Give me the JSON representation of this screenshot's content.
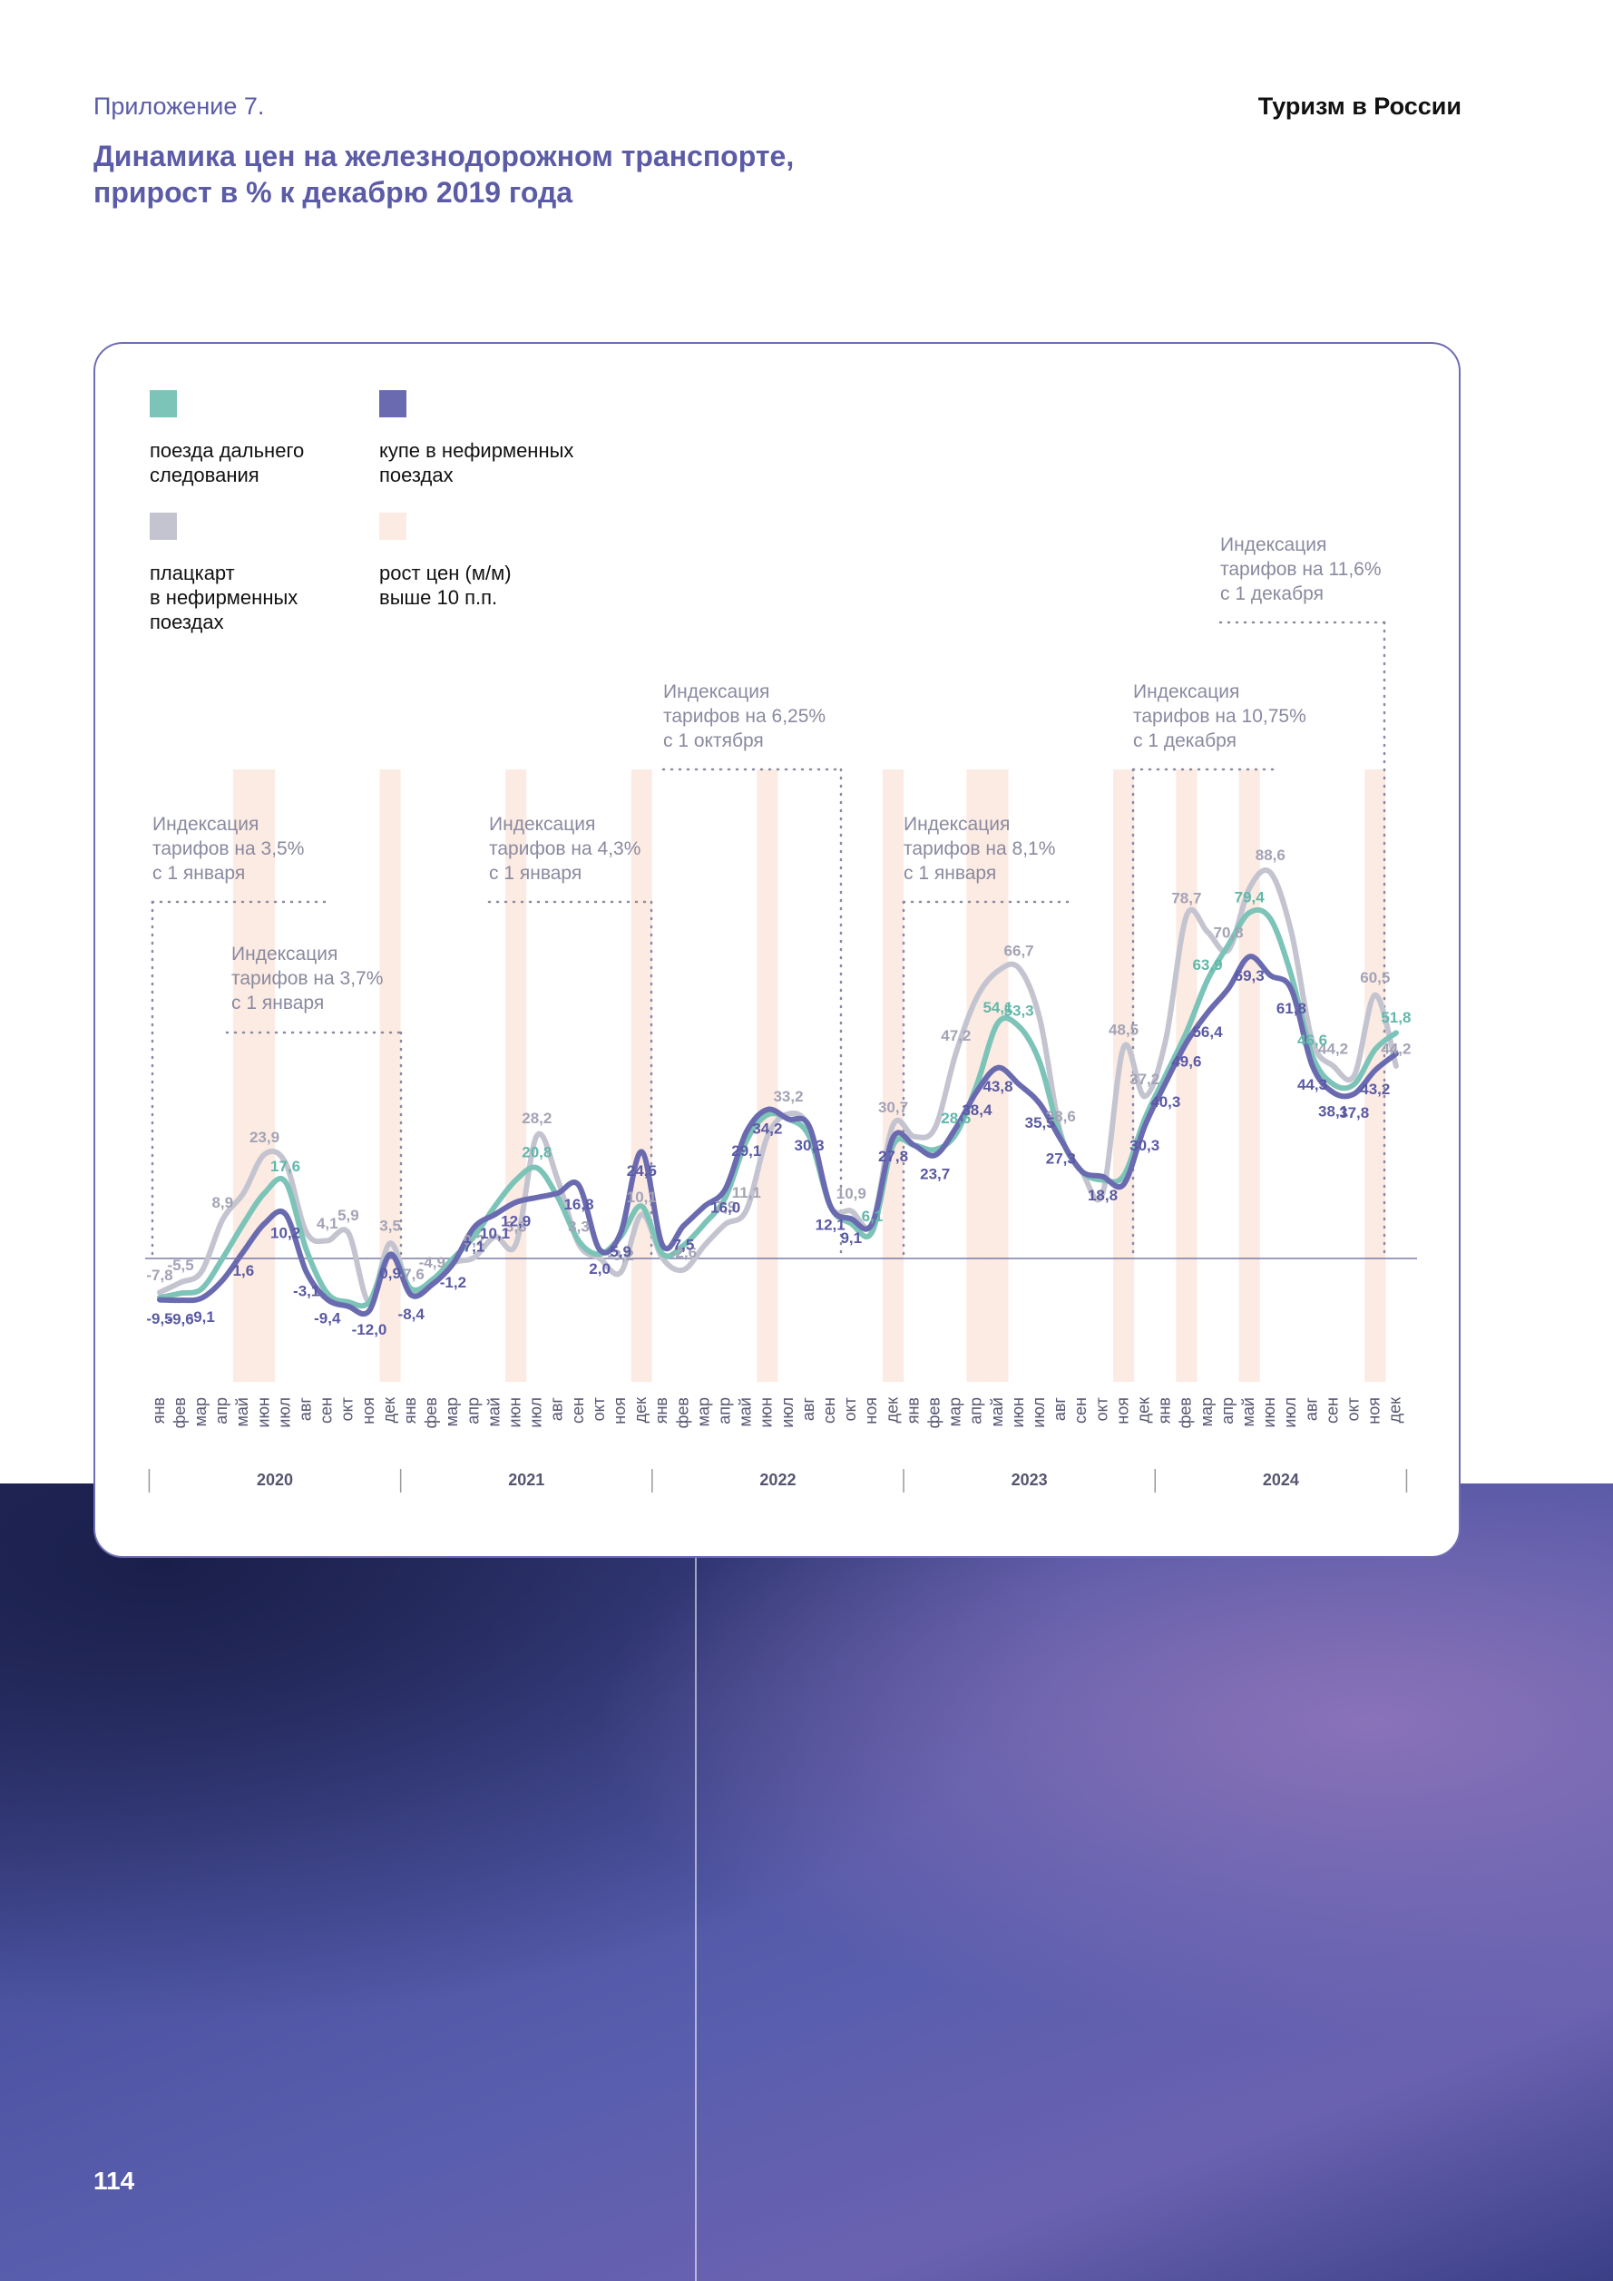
{
  "header": {
    "appendix": "Приложение 7.",
    "title": "Динамика цен на железнодорожном транспорте,\nприрост в % к декабрю 2019 года",
    "publication": "Туризм в России"
  },
  "page_number": "114",
  "chart_data": {
    "type": "line",
    "categories": [
      "янв",
      "фев",
      "мар",
      "апр",
      "май",
      "июн",
      "июл",
      "авг",
      "сен",
      "окт",
      "ноя",
      "дек",
      "янв",
      "фев",
      "мар",
      "апр",
      "май",
      "июн",
      "июл",
      "авг",
      "сен",
      "окт",
      "ноя",
      "дек",
      "янв",
      "фев",
      "мар",
      "апр",
      "май",
      "июн",
      "июл",
      "авг",
      "сен",
      "окт",
      "ноя",
      "дек",
      "янв",
      "фев",
      "мар",
      "апр",
      "май",
      "июн",
      "июл",
      "авг",
      "сен",
      "окт",
      "ноя",
      "дек",
      "янв",
      "фев",
      "мар",
      "апр",
      "май",
      "июн",
      "июл",
      "авг",
      "сен",
      "окт",
      "ноя",
      "дек"
    ],
    "years": [
      "2020",
      "2021",
      "2022",
      "2023",
      "2024"
    ],
    "ylim": [
      -15,
      95
    ],
    "series": [
      {
        "name": "плацкарт\nв нефирменных\nпоездах",
        "color": "#c4c4d0",
        "label_color": "#a3a3b6",
        "values": [
          -7.8,
          -5.5,
          -3,
          8.9,
          15,
          23.9,
          22,
          6,
          4.1,
          5.9,
          -10,
          3.5,
          -7.6,
          -4.9,
          -1,
          0.2,
          5,
          3.3,
          28.2,
          18,
          3.3,
          0,
          -3.2,
          10.1,
          0,
          -2.6,
          3,
          7.9,
          11.1,
          28,
          33.2,
          30,
          12,
          10.9,
          8,
          30.7,
          28,
          30,
          47.2,
          60,
          66,
          66.7,
          55,
          28.6,
          20,
          15,
          48.5,
          37.2,
          50,
          78.7,
          75,
          70.8,
          85,
          88.6,
          75,
          50,
          44.2,
          42,
          60.5,
          44.2
        ],
        "value_labels": [
          "-7,8",
          "-5,5",
          null,
          "8,9",
          null,
          "23,9",
          null,
          null,
          "4,1",
          "5,9",
          null,
          "3,5",
          "-7,6",
          "-4,9",
          null,
          "0,2",
          null,
          "3,3",
          "28,2",
          null,
          "3,3",
          null,
          "-3,2",
          "10,1",
          null,
          "-2,6",
          null,
          "7,9",
          "11,1",
          null,
          "33,2",
          null,
          null,
          "10,9",
          null,
          "30,7",
          null,
          null,
          "47,2",
          null,
          null,
          "66,7",
          null,
          "28,6",
          null,
          null,
          "48,5",
          "37,2",
          null,
          "78,7",
          null,
          "70,8",
          null,
          "88,6",
          null,
          null,
          "44,2",
          null,
          "60,5",
          "44,2"
        ]
      },
      {
        "name": "поезда дальнего\nследования",
        "color": "#7cc3b8",
        "label_color": "#62b8aa",
        "values": [
          -9,
          -8,
          -7,
          0,
          8,
          15,
          17.6,
          2,
          -8,
          -10,
          -10,
          1,
          -7,
          -5,
          0,
          5,
          12,
          18,
          20.8,
          14,
          4,
          1,
          5,
          12,
          1,
          3,
          8,
          14,
          27,
          33,
          32,
          28,
          12,
          8,
          6.1,
          26,
          26,
          25,
          28.6,
          40,
          54.1,
          53.3,
          45,
          28,
          20,
          18,
          19,
          32,
          42,
          52,
          63.9,
          72,
          79.4,
          78,
          65,
          46.6,
          40,
          40,
          48,
          51.8
        ],
        "value_labels": [
          null,
          null,
          null,
          null,
          null,
          null,
          "17,6",
          null,
          null,
          null,
          null,
          null,
          null,
          null,
          null,
          null,
          null,
          null,
          "20,8",
          null,
          null,
          null,
          null,
          null,
          null,
          null,
          null,
          null,
          null,
          null,
          null,
          null,
          null,
          null,
          "6,1",
          null,
          null,
          null,
          "28,6",
          null,
          "54,1",
          "53,3",
          null,
          null,
          null,
          null,
          null,
          null,
          null,
          null,
          "63,9",
          null,
          "79,4",
          null,
          null,
          "46,6",
          null,
          null,
          null,
          "51,8"
        ]
      },
      {
        "name": "купе в нефирменных\nпоездах",
        "color": "#6a6ab0",
        "label_color": "#5a5aa4",
        "values": [
          -9.5,
          -9.6,
          -9.1,
          -5,
          1.6,
          8,
          10.2,
          -3.1,
          -9.4,
          -11,
          -12.0,
          0.9,
          -8.4,
          -6,
          -1.2,
          7.1,
          10.1,
          12.9,
          14,
          15,
          16.8,
          2.0,
          5.9,
          24.5,
          3,
          7.5,
          12,
          16.0,
          29.1,
          34.2,
          32,
          30.3,
          12.1,
          9.1,
          8,
          27.8,
          26,
          23.7,
          30,
          38.4,
          43.8,
          40,
          35.5,
          27.3,
          20,
          18.8,
          17,
          30.3,
          40.3,
          49.6,
          56.4,
          62,
          69.3,
          65,
          61.8,
          44.3,
          38.1,
          37.8,
          43.2,
          47
        ],
        "value_labels": [
          "-9,5",
          "-9,6",
          "-9,1",
          null,
          "1,6",
          null,
          "10,2",
          "-3,1",
          "-9,4",
          null,
          "-12,0",
          "0,9",
          "-8,4",
          null,
          "-1,2",
          "7,1",
          "10,1",
          "12,9",
          null,
          null,
          "16,8",
          "2,0",
          "5,9",
          "24,5",
          null,
          "7,5",
          null,
          "16,0",
          "29,1",
          "34,2",
          null,
          "30,3",
          "12,1",
          "9,1",
          null,
          "27,8",
          null,
          "23,7",
          null,
          "38,4",
          "43,8",
          null,
          "35,5",
          "27,3",
          null,
          "18,8",
          null,
          "30,3",
          "40,3",
          "49,6",
          "56,4",
          null,
          "69,3",
          null,
          "61,8",
          "44,3",
          "38,1",
          "37,8",
          "43,2",
          null
        ]
      }
    ],
    "highlight": {
      "name": "рост цен (м/м)\nвыше 10 п.п.",
      "color": "#fcebe2",
      "months": [
        4,
        5,
        11,
        17,
        23,
        29,
        35,
        39,
        40,
        46,
        49,
        52,
        58
      ]
    },
    "annotations": [
      "Индексация\nтарифов на 3,5%\nс 1 января",
      "Индексация\nтарифов на 3,7%\nс 1 января",
      "Индексация\nтарифов на 4,3%\nс 1 января",
      "Индексация\nтарифов на 6,25%\nс 1 октября",
      "Индексация\nтарифов на 8,1%\nс 1 января",
      "Индексация\nтарифов на 10,75%\nс 1 декабря",
      "Индексация\nтарифов на 11,6%\nс 1 декабря"
    ]
  }
}
